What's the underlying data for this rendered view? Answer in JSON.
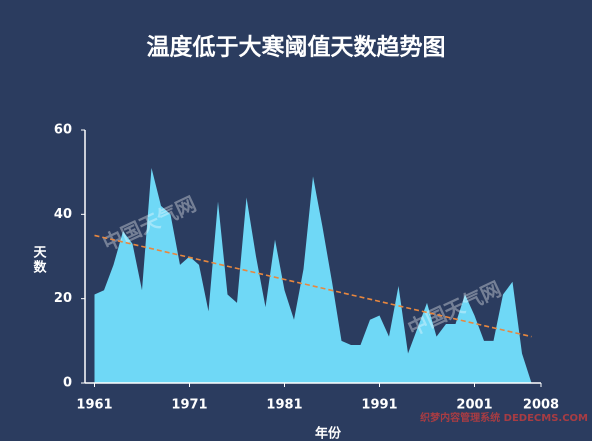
{
  "chart_data": {
    "type": "area",
    "title": "温度低于大寒阈值天数趋势图",
    "y_label": "天数",
    "x_label": "年份",
    "watermark": "中国天气网",
    "site_watermark": "织梦内容管理系统 DEDECMS.COM",
    "x": [
      1961,
      1962,
      1963,
      1964,
      1965,
      1966,
      1967,
      1968,
      1969,
      1970,
      1971,
      1972,
      1973,
      1974,
      1975,
      1976,
      1977,
      1978,
      1979,
      1980,
      1981,
      1982,
      1983,
      1984,
      1985,
      1986,
      1987,
      1988,
      1989,
      1990,
      1991,
      1992,
      1993,
      1994,
      1995,
      1996,
      1997,
      1998,
      1999,
      2000,
      2001,
      2002,
      2003,
      2004,
      2005,
      2006,
      2007
    ],
    "series": [
      {
        "name": "天数",
        "color": "#6fd8f6",
        "values": [
          21,
          22,
          28,
          36,
          33,
          22,
          51,
          42,
          40,
          28,
          30,
          28,
          17,
          43,
          21,
          19,
          44,
          30,
          18,
          34,
          22,
          15,
          27,
          49,
          37,
          24,
          10,
          9,
          9,
          15,
          16,
          11,
          23,
          7,
          13,
          19,
          11,
          14,
          14,
          21,
          16,
          10,
          10,
          21,
          24,
          7,
          0
        ]
      }
    ],
    "trend": {
      "x": [
        1961,
        2007
      ],
      "values": [
        35,
        11
      ],
      "color": "#e8873e"
    },
    "xlim": [
      1960,
      2008
    ],
    "xticks": [
      1961,
      1971,
      1981,
      1991,
      2001,
      2008
    ],
    "ylim": [
      0,
      60
    ],
    "yticks": [
      0,
      20,
      40,
      60
    ]
  }
}
